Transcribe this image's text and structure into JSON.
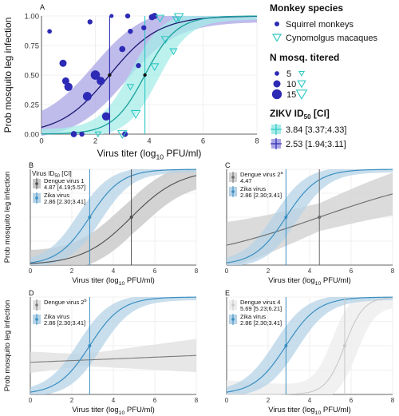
{
  "colors": {
    "squirrel": "#2d2ab5",
    "squirrel_band": "#aaa6e6",
    "cyno": "#2ec8c3",
    "cyno_band": "#a5ece8",
    "zika": "#3a8fc0",
    "zika_band": "#b6d3e7",
    "dengue1": "#4d4d4d",
    "dengue1_band": "#c8c8c8",
    "dengue2a": "#6b6b6b",
    "dengue2a_band": "#d2d2d2",
    "dengue2b": "#7a7a7a",
    "dengue2b_band": "#e1e1e1",
    "dengue4": "#c8c8c8",
    "dengue4_band": "#eeeeee"
  },
  "legend": {
    "species_title": "Monkey species",
    "squirrel_label": "Squirrel monkeys",
    "cyno_label": "Cynomolgus macaques",
    "n_title": "N mosq. titered",
    "n_values": [
      "5",
      "10",
      "15"
    ],
    "zikv_title": "ZIKV  ID",
    "zikv_sub": "50",
    "zikv_ci": " [CI]",
    "zikv_cyno": "3.84 [3.37;4.33]",
    "zikv_squirrel": "2.53 [1.94;3.11]"
  },
  "chart_data": [
    {
      "panel": "A",
      "type": "scatter",
      "xlabel": "Virus titer (log10 PFU/ml)",
      "ylabel": "Prob mosquito leg infection",
      "xlim": [
        0,
        8
      ],
      "ylim": [
        0,
        1
      ],
      "xticks": [
        "0",
        "2",
        "4",
        "6",
        "8"
      ],
      "yticks": [
        "0.00",
        "0.25",
        "0.50",
        "0.75",
        "1.00"
      ],
      "series": [
        {
          "name": "Squirrel monkeys",
          "id50": 2.53,
          "points": [
            {
              "x": 0.3,
              "y": 0.87,
              "n": 5
            },
            {
              "x": 0.8,
              "y": 0.6,
              "n": 10
            },
            {
              "x": 0.9,
              "y": 0.45,
              "n": 10
            },
            {
              "x": 1.0,
              "y": 0.4,
              "n": 12
            },
            {
              "x": 1.2,
              "y": 0.0,
              "n": 8
            },
            {
              "x": 1.5,
              "y": 0.0,
              "n": 6
            },
            {
              "x": 1.7,
              "y": 0.32,
              "n": 13
            },
            {
              "x": 2.0,
              "y": 0.5,
              "n": 14
            },
            {
              "x": 2.2,
              "y": 0.45,
              "n": 12
            },
            {
              "x": 2.4,
              "y": 0.15,
              "n": 12
            },
            {
              "x": 1.8,
              "y": 0.95,
              "n": 6
            },
            {
              "x": 2.6,
              "y": 1.0,
              "n": 4
            },
            {
              "x": 3.0,
              "y": 0.72,
              "n": 8
            },
            {
              "x": 3.2,
              "y": 1.0,
              "n": 6
            },
            {
              "x": 3.3,
              "y": 0.87,
              "n": 6
            },
            {
              "x": 3.6,
              "y": 0.58,
              "n": 6
            },
            {
              "x": 3.8,
              "y": 0.9,
              "n": 6
            },
            {
              "x": 4.1,
              "y": 0.99,
              "n": 8
            },
            {
              "x": 4.2,
              "y": 1.0,
              "n": 8
            },
            {
              "x": 3.1,
              "y": 0.0,
              "n": 7
            }
          ]
        },
        {
          "name": "Cynomolgus macaques",
          "id50": 3.84,
          "points": [
            {
              "x": 3.3,
              "y": 0.4,
              "n": 7
            },
            {
              "x": 3.5,
              "y": 0.17,
              "n": 12
            },
            {
              "x": 4.2,
              "y": 0.57,
              "n": 10
            },
            {
              "x": 4.6,
              "y": 0.8,
              "n": 10
            },
            {
              "x": 4.9,
              "y": 0.7,
              "n": 8
            },
            {
              "x": 5.0,
              "y": 0.97,
              "n": 8
            },
            {
              "x": 3.0,
              "y": 0.0,
              "n": 12
            },
            {
              "x": 5.1,
              "y": 0.99,
              "n": 12
            },
            {
              "x": 4.4,
              "y": 0.98,
              "n": 10
            },
            {
              "x": 2.1,
              "y": 0.0,
              "n": 6
            }
          ]
        }
      ]
    },
    {
      "panel": "B",
      "type": "line",
      "xlabel": "Virus titer (log10 PFU/ml)",
      "ylabel": "Prob mosquito leg infection",
      "xlim": [
        0,
        8
      ],
      "ylim": [
        0,
        1
      ],
      "legend_header": "Virus  ID50 [CI]",
      "series": [
        {
          "name": "Dengue virus 1",
          "ci": "4.87 [4.19;5.57]",
          "id50": 4.87,
          "slope": 0.85
        },
        {
          "name": "Zika virus",
          "ci": "2.86 [2.30;3.41]",
          "id50": 2.86,
          "slope": 1.3
        }
      ]
    },
    {
      "panel": "C",
      "type": "line",
      "xlabel": "Virus titer (log10 PFU/ml)",
      "ylabel": "",
      "xlim": [
        0,
        8
      ],
      "ylim": [
        0,
        1
      ],
      "series": [
        {
          "name": "Dengue virus 2",
          "sup": "a",
          "ci": "4.47",
          "id50": 4.47,
          "slope": 0.3
        },
        {
          "name": "Zika virus",
          "ci": "2.86 [2.30;3.41]",
          "id50": 2.86,
          "slope": 1.3
        }
      ]
    },
    {
      "panel": "D",
      "type": "line",
      "xlabel": "Virus titer (log10 PFU/ml)",
      "ylabel": "Prob mosquito leg infection",
      "xlim": [
        0,
        8
      ],
      "ylim": [
        0,
        1
      ],
      "series": [
        {
          "name": "Dengue virus 2",
          "sup": "b",
          "ci": "",
          "id50": null,
          "y_start": 0.33,
          "y_end": 0.4
        },
        {
          "name": "Zika virus",
          "ci": "2.86 [2.30;3.41]",
          "id50": 2.86,
          "slope": 1.3
        }
      ]
    },
    {
      "panel": "E",
      "type": "line",
      "xlabel": "Virus titer (log10 PFU/ml)",
      "ylabel": "",
      "xlim": [
        0,
        8
      ],
      "ylim": [
        0,
        1
      ],
      "series": [
        {
          "name": "Dengue virus 4",
          "ci": "5.69 [5.23;6.21]",
          "id50": 5.69,
          "slope": 2.2
        },
        {
          "name": "Zika virus",
          "ci": "2.86 [2.30;3.41]",
          "id50": 2.86,
          "slope": 1.3
        }
      ]
    }
  ]
}
